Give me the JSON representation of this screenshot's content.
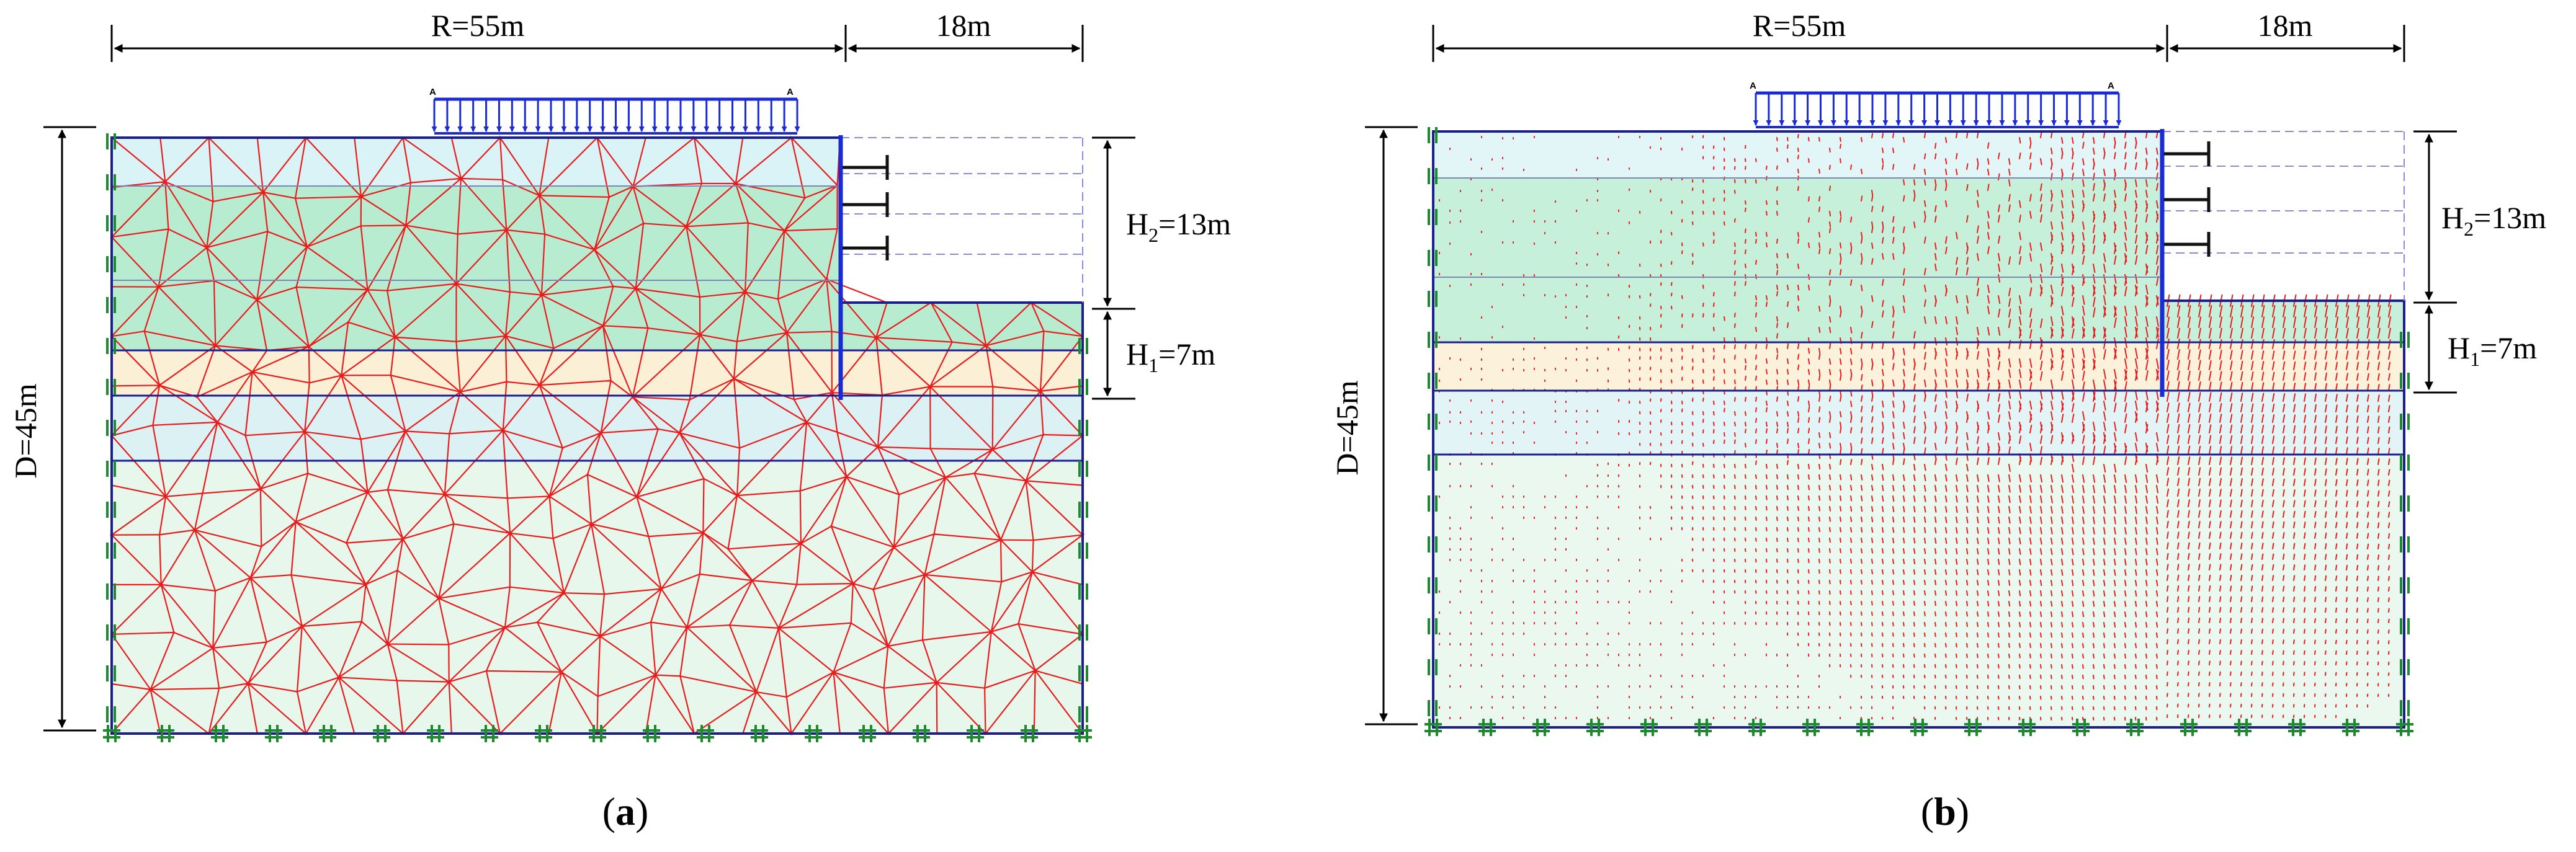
{
  "panels": [
    {
      "id": "a",
      "caption_open": "(",
      "caption_letter": "a",
      "caption_close": ")",
      "dim_top_left": "R=55m",
      "dim_top_right": "18m",
      "dim_depth": "D=45m",
      "dim_h2": "H",
      "dim_h2_sub": "2",
      "dim_h2_rest": "=13m",
      "dim_h1": "H",
      "dim_h1_sub": "1",
      "dim_h1_rest": "=7m",
      "load_label_left": "A",
      "load_label_right": "A",
      "view": "mesh"
    },
    {
      "id": "b",
      "caption_open": "(",
      "caption_letter": "b",
      "caption_close": ")",
      "dim_top_left": "R=55m",
      "dim_top_right": "18m",
      "dim_depth": "D=45m",
      "dim_h2": "H",
      "dim_h2_sub": "2",
      "dim_h2_rest": "=13m",
      "dim_h1": "H",
      "dim_h1_sub": "1",
      "dim_h1_rest": "=7m",
      "load_label_left": "A",
      "load_label_right": "A",
      "view": "displacement"
    }
  ],
  "colors": {
    "mesh": "#e81c1c",
    "boundary": "#1b1f8c",
    "wall": "#1a2bd6",
    "fixity": "#1d8a2e",
    "anchor": "#111111",
    "layer_top": "#d9f3f6",
    "layer_green": "#b8ecd0",
    "layer_sand": "#fbf0d6",
    "layer_clay": "#dbf1f3",
    "layer_bottom": "#e8f7ec",
    "dashed_excavation": "#8a8ad6"
  }
}
